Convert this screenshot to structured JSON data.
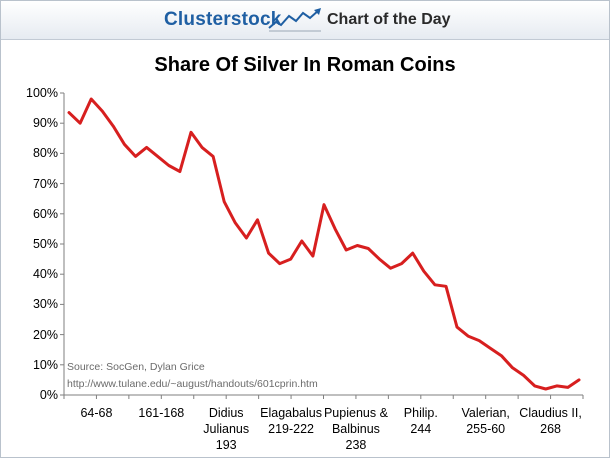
{
  "header": {
    "brand": "Clusterstock",
    "section": "Chart of the Day",
    "logo_icon": "rising-chart-icon"
  },
  "chart_data": {
    "type": "line",
    "title": "Share Of Silver In Roman Coins",
    "ylim": [
      0,
      100
    ],
    "y_ticks": [
      "0%",
      "10%",
      "20%",
      "30%",
      "40%",
      "50%",
      "60%",
      "70%",
      "80%",
      "90%",
      "100%"
    ],
    "x_tick_labels": [
      [
        "64-68"
      ],
      [
        "161-168"
      ],
      [
        "Didius",
        "Julianus",
        "193"
      ],
      [
        "Elagabalus",
        "219-222"
      ],
      [
        "Pupienus &",
        "Balbinus",
        "238"
      ],
      [
        "Philip.",
        "244"
      ],
      [
        "Valerian,",
        "255-60"
      ],
      [
        "Claudius II,",
        "268"
      ]
    ],
    "series": [
      {
        "values": [
          93.5,
          90,
          98,
          94,
          89,
          83,
          79,
          82,
          79,
          76,
          74,
          87,
          82,
          79,
          64,
          57,
          52,
          58,
          47,
          43.5,
          45,
          51,
          46,
          63,
          55,
          48,
          49.5,
          48.5,
          45,
          42,
          43.5,
          47,
          41,
          36.5,
          36,
          22.5,
          19.5,
          18,
          15.5,
          13,
          9,
          6.5,
          3,
          2,
          3,
          2.5,
          5
        ],
        "color": "#d71f1f"
      }
    ],
    "grid": false,
    "legend": "none",
    "source_lines": [
      "Source: SocGen, Dylan Grice",
      "http://www.tulane.edu/~august/handouts/601cprin.htm"
    ]
  }
}
